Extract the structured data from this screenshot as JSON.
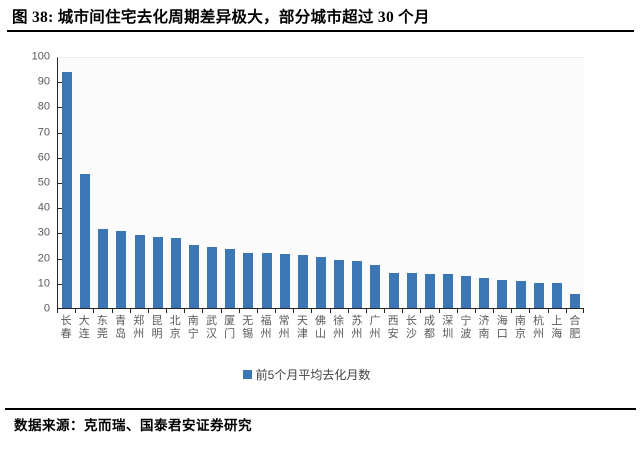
{
  "figure": {
    "title": "图 38: 城市间住宅去化周期差异极大，部分城市超过 30 个月",
    "source": "数据来源：克而瑞、国泰君安证券研究"
  },
  "legend": {
    "label": "前5个月平均去化月数",
    "marker_color": "#3d76b4"
  },
  "colors": {
    "bar": "#3d76b4",
    "axis": "#262626",
    "tick_label": "#595959",
    "plot_background": "#fbfbfb"
  },
  "chart_data": {
    "type": "bar",
    "title": "图 38: 城市间住宅去化周期差异极大，部分城市超过 30 个月",
    "categories": [
      "长春",
      "大连",
      "东莞",
      "青岛",
      "郑州",
      "昆明",
      "北京",
      "南宁",
      "武汉",
      "厦门",
      "无锡",
      "福州",
      "常州",
      "天津",
      "佛山",
      "徐州",
      "苏州",
      "广州",
      "西安",
      "长沙",
      "成都",
      "深圳",
      "宁波",
      "济南",
      "海口",
      "南京",
      "杭州",
      "上海",
      "合肥"
    ],
    "values": [
      94.3,
      53.5,
      31.5,
      31.0,
      29.3,
      28.6,
      28.0,
      25.4,
      24.4,
      23.8,
      22.2,
      22.1,
      21.5,
      21.4,
      20.5,
      19.4,
      18.9,
      17.2,
      14.1,
      13.9,
      13.8,
      13.7,
      12.7,
      11.9,
      11.1,
      10.8,
      10.2,
      9.9,
      5.6
    ],
    "series_name": "前5个月平均去化月数",
    "xlabel": "",
    "ylabel": "",
    "ylim": [
      0,
      100
    ],
    "ytick_interval": 10,
    "grid": false,
    "legend_position": "bottom",
    "bar_color": "#3d76b4"
  }
}
